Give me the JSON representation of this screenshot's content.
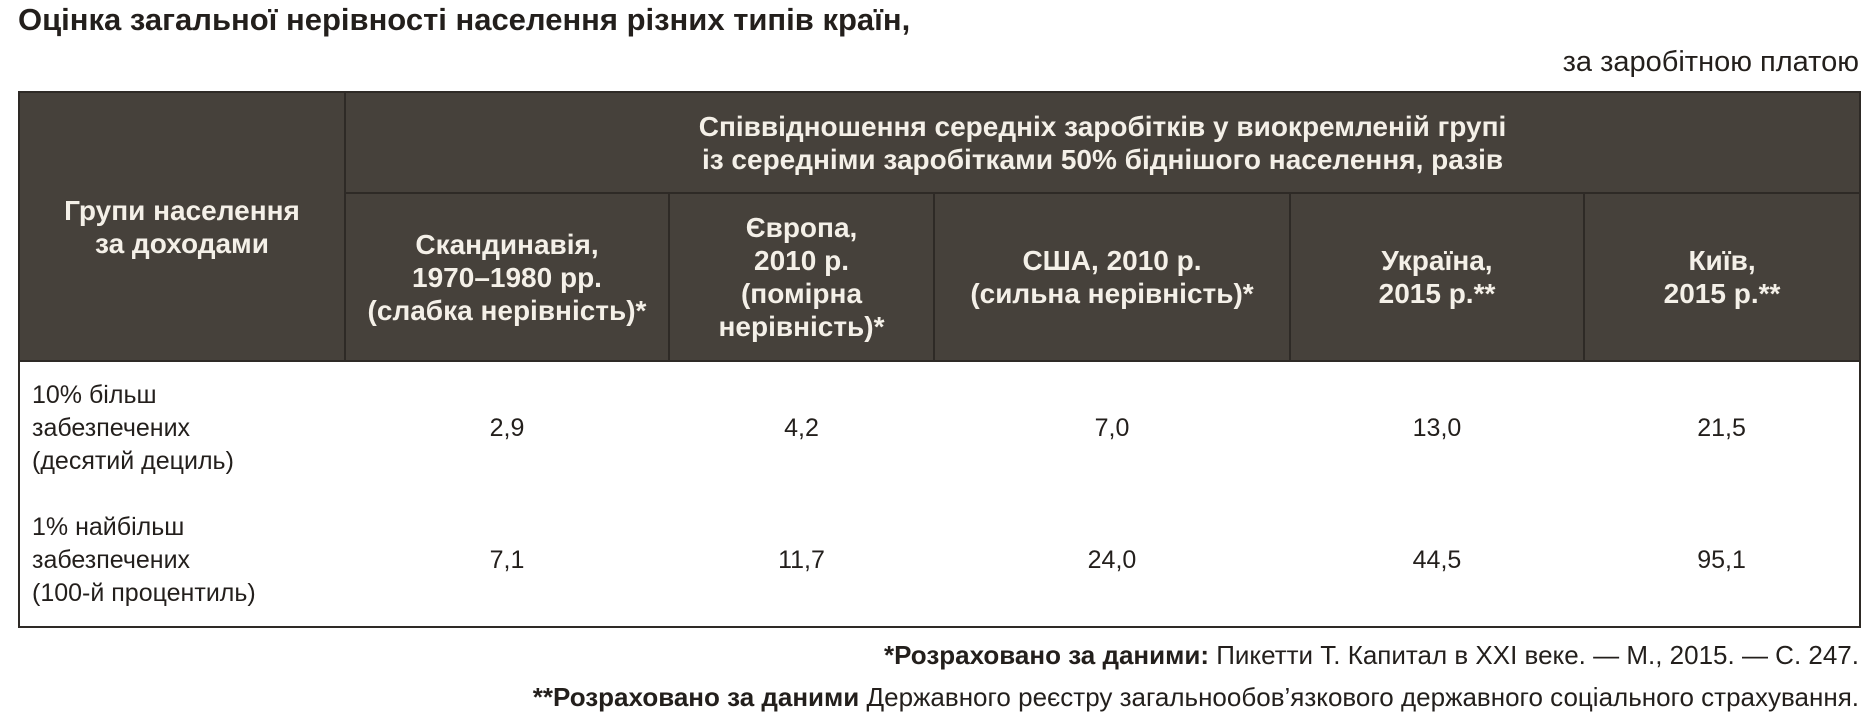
{
  "title": "Оцінка загальної нерівності населення різних типів країн,",
  "subtitle": "за заробітною платою",
  "table": {
    "group_header": [
      "Групи населення",
      "за доходами"
    ],
    "span_header": [
      "Співвідношення середніх заробітків у виокремленій групі",
      "із середніми заробітками 50% біднішого населення, разів"
    ],
    "columns": [
      [
        "Скандинавія,",
        "1970–1980 рр.",
        "(слабка нерівність)*"
      ],
      [
        "Європа,",
        "2010 р.",
        "(помірна",
        "нерівність)*"
      ],
      [
        "США, 2010 р.",
        "(сильна нерівність)*"
      ],
      [
        "Україна,",
        "2015 р.**"
      ],
      [
        "Київ,",
        "2015 р.**"
      ]
    ],
    "rows": [
      {
        "label": [
          "10% більш",
          "забезпечених",
          "(десятий дециль)"
        ],
        "values": [
          "2,9",
          "4,2",
          "7,0",
          "13,0",
          "21,5"
        ]
      },
      {
        "label": [
          "1% найбільш",
          "забезпечених",
          "(100-й процентиль)"
        ],
        "values": [
          "7,1",
          "11,7",
          "24,0",
          "44,5",
          "95,1"
        ]
      }
    ]
  },
  "footnotes": [
    {
      "bold": "*Розраховано за даними:",
      "text": "Пикетти Т. Капитал в XXI веке. — М., 2015. — С. 247."
    },
    {
      "bold": "**Розраховано за даними",
      "text": "Державного реєстру загальнообов’язкового державного соціального страхування."
    }
  ]
}
